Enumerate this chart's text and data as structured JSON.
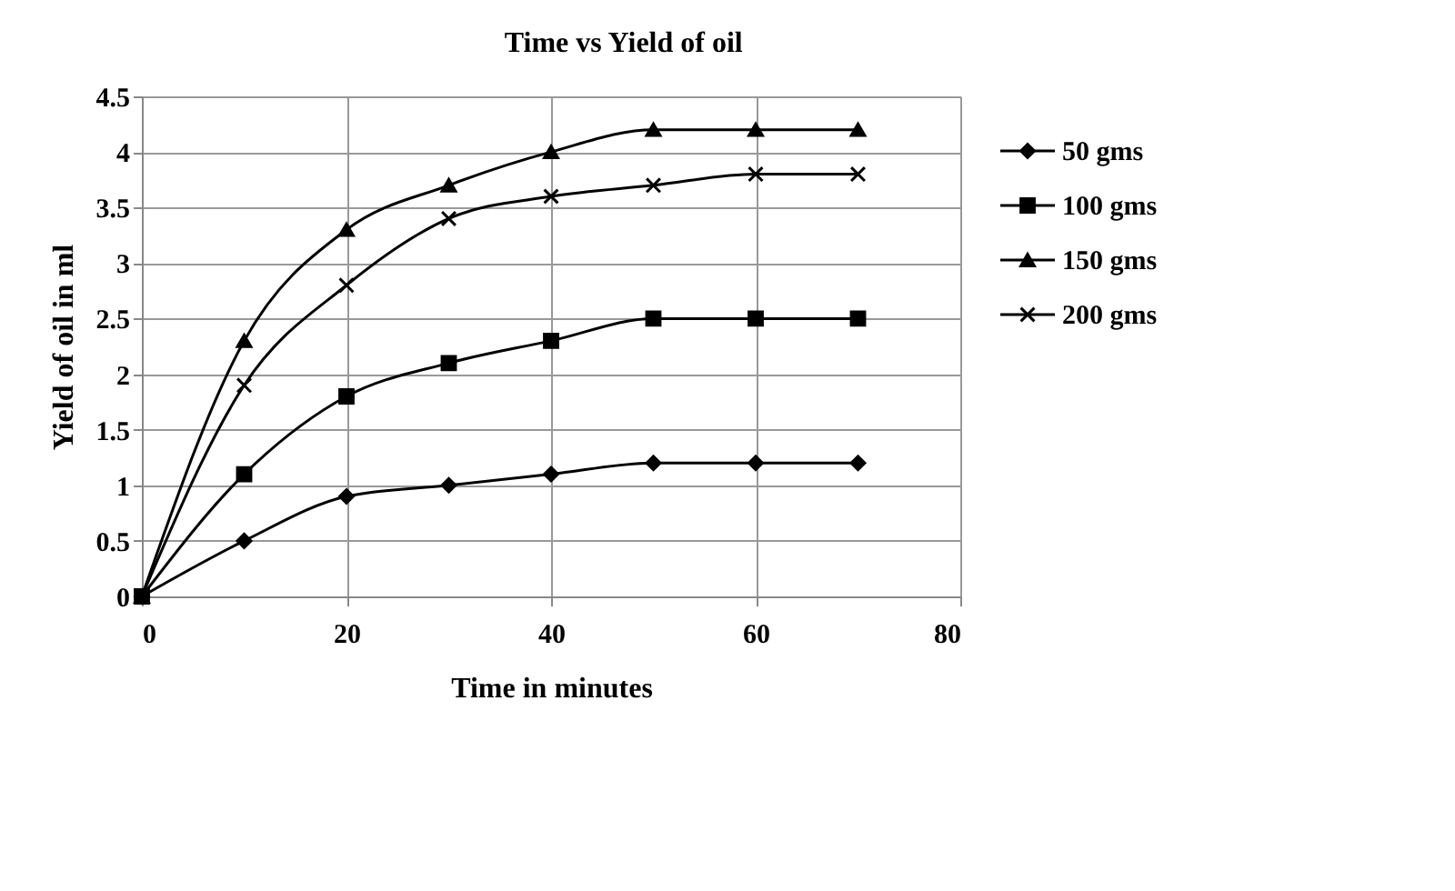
{
  "chart_data": {
    "type": "line",
    "title": "Time vs Yield of oil",
    "xlabel": "Time in minutes",
    "ylabel": "Yield of oil in ml",
    "x": [
      0,
      10,
      20,
      30,
      40,
      50,
      60,
      70
    ],
    "series": [
      {
        "name": "50 gms",
        "color": "#000000",
        "marker": "diamond",
        "values": [
          0,
          0.5,
          0.9,
          1.0,
          1.1,
          1.2,
          1.2,
          1.2
        ]
      },
      {
        "name": "100 gms",
        "color": "#000000",
        "marker": "square",
        "values": [
          0,
          1.1,
          1.8,
          2.1,
          2.3,
          2.5,
          2.5,
          2.5
        ]
      },
      {
        "name": "150 gms",
        "color": "#000000",
        "marker": "triangle",
        "values": [
          0,
          2.3,
          3.3,
          3.7,
          4.0,
          4.2,
          4.2,
          4.2
        ]
      },
      {
        "name": "200 gms",
        "color": "#000000",
        "marker": "cross",
        "values": [
          0,
          1.9,
          2.8,
          3.4,
          3.6,
          3.7,
          3.8,
          3.8
        ]
      }
    ],
    "xlim": [
      0,
      80
    ],
    "xticks": [
      0,
      20,
      40,
      60,
      80
    ],
    "ylim": [
      0,
      4.5
    ],
    "yticks": [
      0,
      0.5,
      1,
      1.5,
      2,
      2.5,
      3,
      3.5,
      4,
      4.5
    ],
    "grid": true,
    "legend": "right",
    "line_style": "solid"
  }
}
